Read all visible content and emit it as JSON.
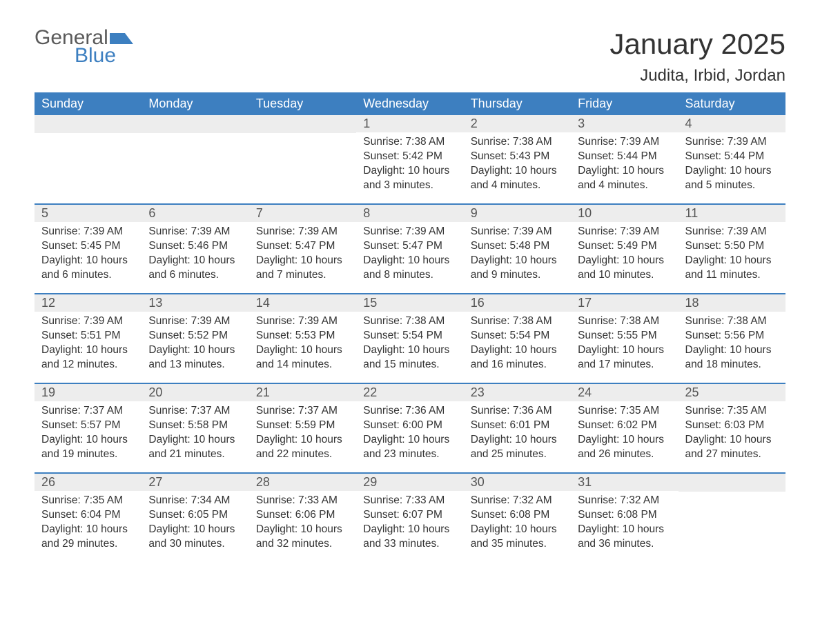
{
  "brand": {
    "word1": "General",
    "word2": "Blue"
  },
  "colors": {
    "accent": "#3d7fc0",
    "header_bg": "#3d7fc0",
    "header_text": "#ffffff",
    "daynum_bg": "#ededed",
    "text": "#333333",
    "background": "#ffffff"
  },
  "title": "January 2025",
  "location": "Judita, Irbid, Jordan",
  "weekdays": [
    "Sunday",
    "Monday",
    "Tuesday",
    "Wednesday",
    "Thursday",
    "Friday",
    "Saturday"
  ],
  "weeks": [
    [
      {
        "day": ""
      },
      {
        "day": ""
      },
      {
        "day": ""
      },
      {
        "day": "1",
        "sunrise": "Sunrise: 7:38 AM",
        "sunset": "Sunset: 5:42 PM",
        "daylight": "Daylight: 10 hours and 3 minutes."
      },
      {
        "day": "2",
        "sunrise": "Sunrise: 7:38 AM",
        "sunset": "Sunset: 5:43 PM",
        "daylight": "Daylight: 10 hours and 4 minutes."
      },
      {
        "day": "3",
        "sunrise": "Sunrise: 7:39 AM",
        "sunset": "Sunset: 5:44 PM",
        "daylight": "Daylight: 10 hours and 4 minutes."
      },
      {
        "day": "4",
        "sunrise": "Sunrise: 7:39 AM",
        "sunset": "Sunset: 5:44 PM",
        "daylight": "Daylight: 10 hours and 5 minutes."
      }
    ],
    [
      {
        "day": "5",
        "sunrise": "Sunrise: 7:39 AM",
        "sunset": "Sunset: 5:45 PM",
        "daylight": "Daylight: 10 hours and 6 minutes."
      },
      {
        "day": "6",
        "sunrise": "Sunrise: 7:39 AM",
        "sunset": "Sunset: 5:46 PM",
        "daylight": "Daylight: 10 hours and 6 minutes."
      },
      {
        "day": "7",
        "sunrise": "Sunrise: 7:39 AM",
        "sunset": "Sunset: 5:47 PM",
        "daylight": "Daylight: 10 hours and 7 minutes."
      },
      {
        "day": "8",
        "sunrise": "Sunrise: 7:39 AM",
        "sunset": "Sunset: 5:47 PM",
        "daylight": "Daylight: 10 hours and 8 minutes."
      },
      {
        "day": "9",
        "sunrise": "Sunrise: 7:39 AM",
        "sunset": "Sunset: 5:48 PM",
        "daylight": "Daylight: 10 hours and 9 minutes."
      },
      {
        "day": "10",
        "sunrise": "Sunrise: 7:39 AM",
        "sunset": "Sunset: 5:49 PM",
        "daylight": "Daylight: 10 hours and 10 minutes."
      },
      {
        "day": "11",
        "sunrise": "Sunrise: 7:39 AM",
        "sunset": "Sunset: 5:50 PM",
        "daylight": "Daylight: 10 hours and 11 minutes."
      }
    ],
    [
      {
        "day": "12",
        "sunrise": "Sunrise: 7:39 AM",
        "sunset": "Sunset: 5:51 PM",
        "daylight": "Daylight: 10 hours and 12 minutes."
      },
      {
        "day": "13",
        "sunrise": "Sunrise: 7:39 AM",
        "sunset": "Sunset: 5:52 PM",
        "daylight": "Daylight: 10 hours and 13 minutes."
      },
      {
        "day": "14",
        "sunrise": "Sunrise: 7:39 AM",
        "sunset": "Sunset: 5:53 PM",
        "daylight": "Daylight: 10 hours and 14 minutes."
      },
      {
        "day": "15",
        "sunrise": "Sunrise: 7:38 AM",
        "sunset": "Sunset: 5:54 PM",
        "daylight": "Daylight: 10 hours and 15 minutes."
      },
      {
        "day": "16",
        "sunrise": "Sunrise: 7:38 AM",
        "sunset": "Sunset: 5:54 PM",
        "daylight": "Daylight: 10 hours and 16 minutes."
      },
      {
        "day": "17",
        "sunrise": "Sunrise: 7:38 AM",
        "sunset": "Sunset: 5:55 PM",
        "daylight": "Daylight: 10 hours and 17 minutes."
      },
      {
        "day": "18",
        "sunrise": "Sunrise: 7:38 AM",
        "sunset": "Sunset: 5:56 PM",
        "daylight": "Daylight: 10 hours and 18 minutes."
      }
    ],
    [
      {
        "day": "19",
        "sunrise": "Sunrise: 7:37 AM",
        "sunset": "Sunset: 5:57 PM",
        "daylight": "Daylight: 10 hours and 19 minutes."
      },
      {
        "day": "20",
        "sunrise": "Sunrise: 7:37 AM",
        "sunset": "Sunset: 5:58 PM",
        "daylight": "Daylight: 10 hours and 21 minutes."
      },
      {
        "day": "21",
        "sunrise": "Sunrise: 7:37 AM",
        "sunset": "Sunset: 5:59 PM",
        "daylight": "Daylight: 10 hours and 22 minutes."
      },
      {
        "day": "22",
        "sunrise": "Sunrise: 7:36 AM",
        "sunset": "Sunset: 6:00 PM",
        "daylight": "Daylight: 10 hours and 23 minutes."
      },
      {
        "day": "23",
        "sunrise": "Sunrise: 7:36 AM",
        "sunset": "Sunset: 6:01 PM",
        "daylight": "Daylight: 10 hours and 25 minutes."
      },
      {
        "day": "24",
        "sunrise": "Sunrise: 7:35 AM",
        "sunset": "Sunset: 6:02 PM",
        "daylight": "Daylight: 10 hours and 26 minutes."
      },
      {
        "day": "25",
        "sunrise": "Sunrise: 7:35 AM",
        "sunset": "Sunset: 6:03 PM",
        "daylight": "Daylight: 10 hours and 27 minutes."
      }
    ],
    [
      {
        "day": "26",
        "sunrise": "Sunrise: 7:35 AM",
        "sunset": "Sunset: 6:04 PM",
        "daylight": "Daylight: 10 hours and 29 minutes."
      },
      {
        "day": "27",
        "sunrise": "Sunrise: 7:34 AM",
        "sunset": "Sunset: 6:05 PM",
        "daylight": "Daylight: 10 hours and 30 minutes."
      },
      {
        "day": "28",
        "sunrise": "Sunrise: 7:33 AM",
        "sunset": "Sunset: 6:06 PM",
        "daylight": "Daylight: 10 hours and 32 minutes."
      },
      {
        "day": "29",
        "sunrise": "Sunrise: 7:33 AM",
        "sunset": "Sunset: 6:07 PM",
        "daylight": "Daylight: 10 hours and 33 minutes."
      },
      {
        "day": "30",
        "sunrise": "Sunrise: 7:32 AM",
        "sunset": "Sunset: 6:08 PM",
        "daylight": "Daylight: 10 hours and 35 minutes."
      },
      {
        "day": "31",
        "sunrise": "Sunrise: 7:32 AM",
        "sunset": "Sunset: 6:08 PM",
        "daylight": "Daylight: 10 hours and 36 minutes."
      },
      {
        "day": ""
      }
    ]
  ]
}
